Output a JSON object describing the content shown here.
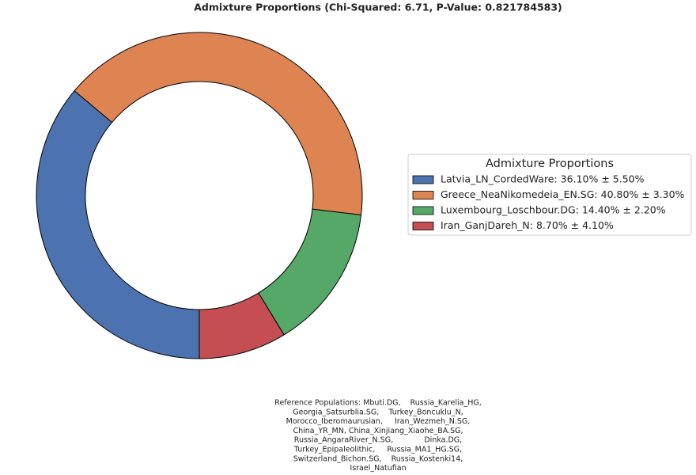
{
  "chart_data": {
    "type": "donut",
    "title": "Admixture Proportions (Chi-Squared: 6.71, P-Value: 0.821784583)",
    "categories": [
      "Latvia_LN_CordedWare",
      "Greece_NeaNikomedeia_EN.SG",
      "Luxembourg_Loschbour.DG",
      "Iran_GanjDareh_N"
    ],
    "values": [
      36.1,
      40.8,
      14.4,
      8.7
    ],
    "errors": [
      5.5,
      3.3,
      2.2,
      4.1
    ],
    "legend_labels": [
      "Latvia_LN_CordedWare: 36.10% ± 5.50%",
      "Greece_NeaNikomedeia_EN.SG: 40.80% ± 3.30%",
      "Luxembourg_Loschbour.DG: 14.40% ± 2.20%",
      "Iran_GanjDareh_N: 8.70% ± 4.10%"
    ],
    "colors": [
      "#4c72b0",
      "#dd8452",
      "#55a868",
      "#c44e52"
    ],
    "legend_title": "Admixture Proportions",
    "legend_position": "right",
    "footnote": [
      "Reference Populations: Mbuti.DG,    Russia_Karelia_HG,",
      "Georgia_Satsurblia.SG,    Turkey_Boncuklu_N,",
      "Morocco_Iberomaurusian,     Iran_Wezmeh_N.SG,",
      "China_YR_MN, China_Xinjiang_Xiaohe_BA.SG,",
      "Russia_AngaraRiver_N.SG,             Dinka.DG,",
      "Turkey_Epipaleolithic,     Russia_MA1_HG.SG,",
      "Switzerland_Bichon.SG,    Russia_Kostenki14,",
      "Israel_Natufian"
    ]
  }
}
